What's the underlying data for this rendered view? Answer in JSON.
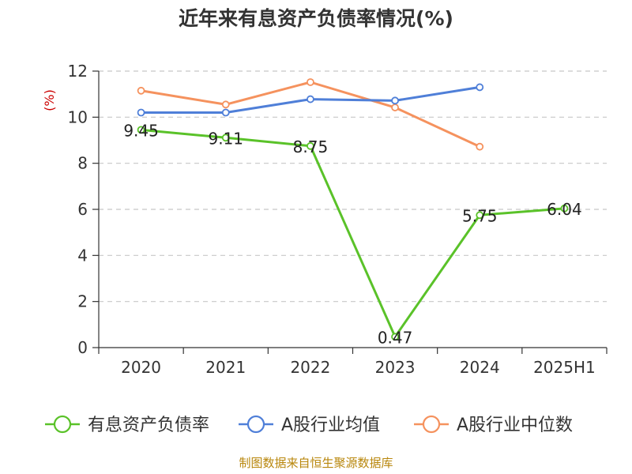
{
  "chart_data": {
    "type": "line",
    "title": "近年来有息资产负债率情况(%)",
    "ylabel": "(%)",
    "categories": [
      "2020",
      "2021",
      "2022",
      "2023",
      "2024",
      "2025H1"
    ],
    "ylim": [
      0,
      12
    ],
    "yticks": [
      "0",
      "2",
      "4",
      "6",
      "8",
      "10",
      "12"
    ],
    "grid": true,
    "legend_position": "bottom",
    "series": [
      {
        "name": "有息资产负债率",
        "color": "#5ac229",
        "values": [
          9.45,
          9.11,
          8.75,
          0.47,
          5.75,
          6.04
        ],
        "labels": [
          "9.45",
          "9.11",
          "8.75",
          "0.47",
          "5.75",
          "6.04"
        ]
      },
      {
        "name": "A股行业均值",
        "color": "#4f7fd8",
        "values": [
          10.2,
          10.2,
          10.78,
          10.72,
          11.3,
          null
        ]
      },
      {
        "name": "A股行业中位数",
        "color": "#f5925e",
        "values": [
          11.15,
          10.55,
          11.52,
          10.42,
          8.72,
          null
        ]
      }
    ],
    "source": "制图数据来自恒生聚源数据库"
  }
}
